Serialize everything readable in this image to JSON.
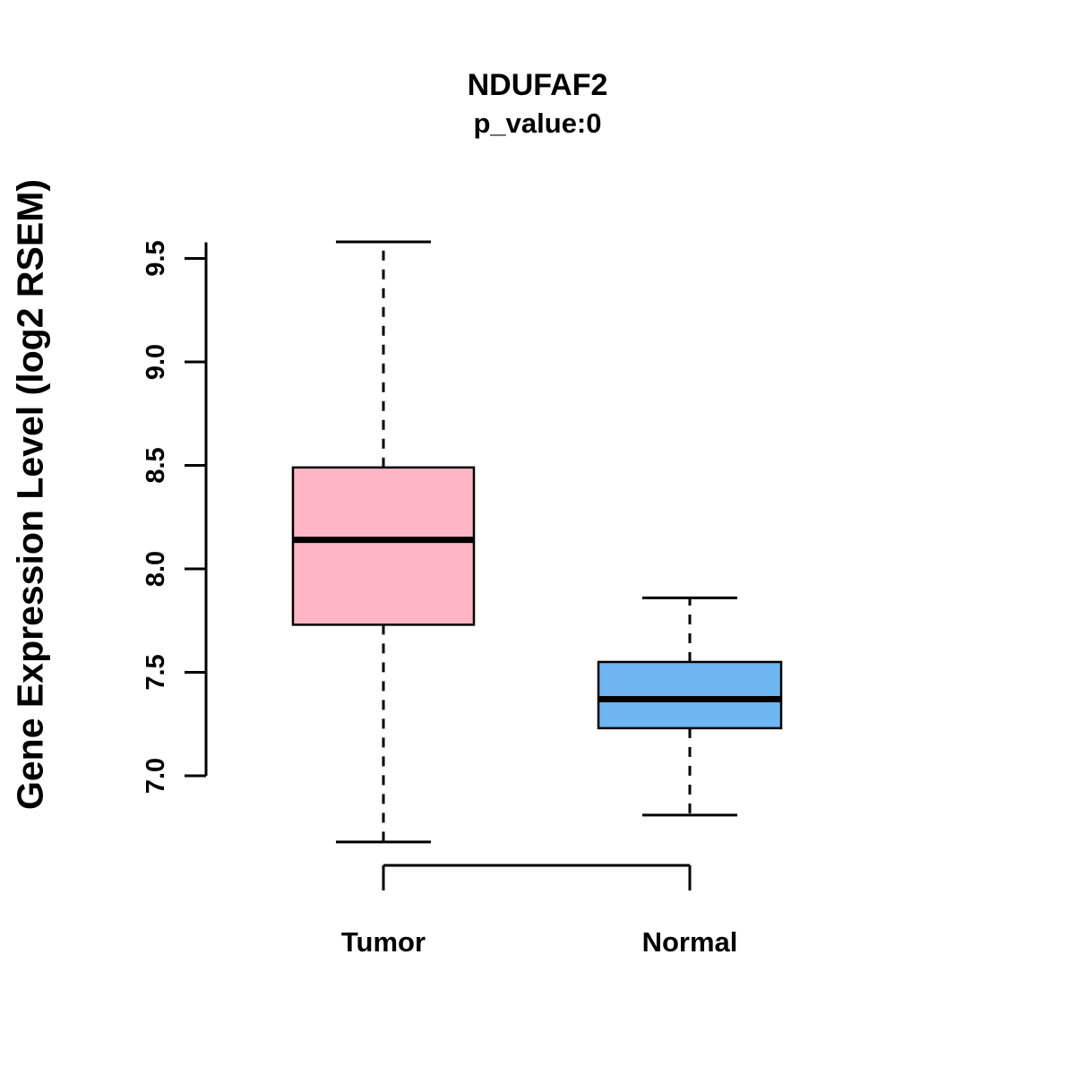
{
  "title": "NDUFAF2",
  "subtitle": "p_value:0",
  "chart_data": {
    "type": "boxplot",
    "title": "NDUFAF2",
    "subtitle": "p_value:0",
    "xlabel": "",
    "ylabel": "Gene Expression Level (log2 RSEM)",
    "y_ticks": [
      "7.0",
      "7.5",
      "8.0",
      "8.5",
      "9.0",
      "9.5"
    ],
    "y_tick_values": [
      7.0,
      7.5,
      8.0,
      8.5,
      9.0,
      9.5
    ],
    "ylim": [
      6.6,
      9.7
    ],
    "grid": "off",
    "legend": "none",
    "groups": [
      {
        "name": "Tumor",
        "color": "#FFB6C4",
        "whisker_low": 6.68,
        "q1": 7.73,
        "median": 8.14,
        "q3": 8.49,
        "whisker_high": 9.58
      },
      {
        "name": "Normal",
        "color": "#6DB6F2",
        "whisker_low": 6.81,
        "q1": 7.23,
        "median": 7.37,
        "q3": 7.55,
        "whisker_high": 7.86
      }
    ]
  },
  "colors": {
    "stroke": "#000000",
    "background": "#FFFFFF"
  }
}
